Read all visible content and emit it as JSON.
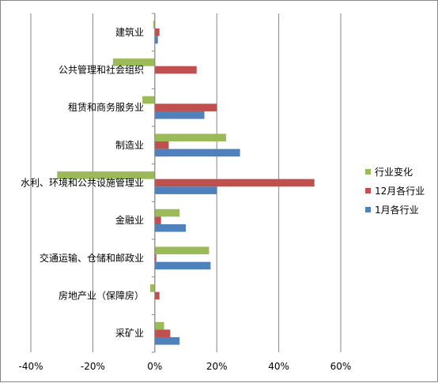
{
  "chart_data": {
    "type": "bar",
    "orientation": "horizontal",
    "categories": [
      "采矿业",
      "房地产业（保障房）",
      "交通运输、仓储和邮政业",
      "金融业",
      "水利、环境和公共设施管理业",
      "制造业",
      "租赁和商务服务业",
      "公共管理和社会组织",
      "建筑业"
    ],
    "series": [
      {
        "name": "1月各行业",
        "color": "#4f81bd",
        "values": [
          8,
          0,
          18,
          10,
          20,
          27.5,
          16,
          0,
          1
        ]
      },
      {
        "name": "12月各行业",
        "color": "#c0504d",
        "values": [
          5,
          1.5,
          0.5,
          2,
          51.5,
          4.5,
          20,
          13.5,
          1.5
        ]
      },
      {
        "name": "行业变化",
        "color": "#9bbb59",
        "values": [
          3,
          -1.5,
          17.5,
          8,
          -31.5,
          23,
          -4,
          -13.5,
          -0.5
        ]
      }
    ],
    "legend_order": [
      "行业变化",
      "12月各行业",
      "1月各行业"
    ],
    "xlim": [
      -40,
      60
    ],
    "xticks": [
      -40,
      -20,
      0,
      20,
      40,
      60
    ],
    "xtick_labels": [
      "-40%",
      "-20%",
      "0%",
      "20%",
      "40%",
      "60%"
    ],
    "title": "",
    "xlabel": "",
    "ylabel": "",
    "grid": "vertical",
    "legend_position": "right"
  }
}
